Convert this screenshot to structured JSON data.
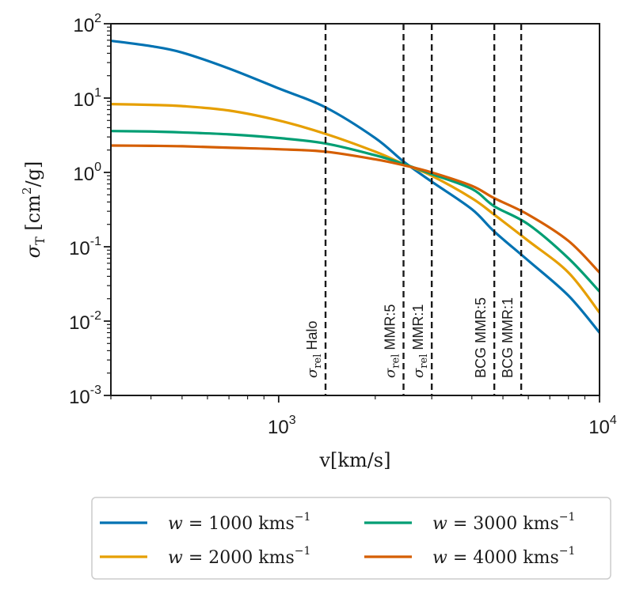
{
  "chart_data": {
    "type": "line",
    "xscale": "log",
    "yscale": "log",
    "xlim": [
      300,
      10000
    ],
    "ylim": [
      0.001,
      100
    ],
    "xlabel": "v[km/s]",
    "ylabel": "σ_T [cm²/g]",
    "ylabel_parts": {
      "sym": "σ",
      "sub": "T",
      "unit_open": "[cm",
      "unit_sup": "2",
      "unit_close": "/g]"
    },
    "x_ticks": [
      {
        "base": "10",
        "exp": "3",
        "value": 1000
      },
      {
        "base": "10",
        "exp": "4",
        "value": 10000
      }
    ],
    "y_ticks": [
      {
        "base": "10",
        "exp": "-3",
        "value": 0.001
      },
      {
        "base": "10",
        "exp": "-2",
        "value": 0.01
      },
      {
        "base": "10",
        "exp": "-1",
        "value": 0.1
      },
      {
        "base": "10",
        "exp": "0",
        "value": 1
      },
      {
        "base": "10",
        "exp": "1",
        "value": 10
      },
      {
        "base": "10",
        "exp": "2",
        "value": 100
      }
    ],
    "grid": false,
    "legend_position": "bottom-center",
    "series": [
      {
        "name": "w = 1000 kms^-1",
        "legend": {
          "lhs": "w",
          "eq": "=",
          "num": "1000",
          "unit": "kms",
          "sup": "−1"
        },
        "color": "#0072b2",
        "x": [
          300,
          400,
          500,
          700,
          1000,
          1400,
          2000,
          2450,
          3000,
          4000,
          4700,
          6000,
          8000,
          10000
        ],
        "y": [
          59,
          50,
          41,
          25,
          13.5,
          7.5,
          2.9,
          1.4,
          0.75,
          0.32,
          0.16,
          0.065,
          0.022,
          0.007
        ]
      },
      {
        "name": "w = 2000 kms^-1",
        "legend": {
          "lhs": "w",
          "eq": "=",
          "num": "2000",
          "unit": "kms",
          "sup": "−1"
        },
        "color": "#e69f00",
        "x": [
          300,
          400,
          500,
          700,
          1000,
          1400,
          2000,
          2450,
          3000,
          4000,
          4700,
          6000,
          8000,
          10000
        ],
        "y": [
          8.3,
          8.1,
          7.8,
          6.8,
          5.0,
          3.3,
          1.9,
          1.3,
          0.9,
          0.45,
          0.27,
          0.12,
          0.045,
          0.013
        ]
      },
      {
        "name": "w = 3000 kms^-1",
        "legend": {
          "lhs": "w",
          "eq": "=",
          "num": "3000",
          "unit": "kms",
          "sup": "−1"
        },
        "color": "#009e73",
        "x": [
          300,
          400,
          500,
          700,
          1000,
          1400,
          2000,
          2450,
          3000,
          4000,
          4700,
          6000,
          8000,
          10000
        ],
        "y": [
          3.6,
          3.55,
          3.45,
          3.25,
          2.9,
          2.45,
          1.7,
          1.3,
          0.95,
          0.6,
          0.35,
          0.2,
          0.07,
          0.025
        ]
      },
      {
        "name": "w = 4000 kms^-1",
        "legend": {
          "lhs": "w",
          "eq": "=",
          "num": "4000",
          "unit": "kms",
          "sup": "−1"
        },
        "color": "#d55e00",
        "x": [
          300,
          400,
          500,
          700,
          1000,
          1400,
          2000,
          2450,
          3000,
          4000,
          4700,
          6000,
          8000,
          10000
        ],
        "y": [
          2.3,
          2.28,
          2.25,
          2.15,
          2.05,
          1.9,
          1.5,
          1.25,
          1.0,
          0.66,
          0.45,
          0.27,
          0.12,
          0.045
        ]
      }
    ],
    "vlines": [
      {
        "x": 1400,
        "sym": "σ",
        "sub": "rel",
        "text": "Halo",
        "color": "#1a1a1a"
      },
      {
        "x": 2450,
        "sym": "σ",
        "sub": "rel",
        "text": "MMR:5",
        "color": "#1a1a1a"
      },
      {
        "x": 3000,
        "sym": "σ",
        "sub": "rel",
        "text": "MMR:1",
        "color": "#1a1a1a"
      },
      {
        "x": 4700,
        "sym": "",
        "sub": "",
        "text": "BCG MMR:5",
        "color": "#1a1a1a"
      },
      {
        "x": 5700,
        "sym": "",
        "sub": "",
        "text": "BCG MMR:1",
        "color": "#1a1a1a"
      }
    ]
  }
}
